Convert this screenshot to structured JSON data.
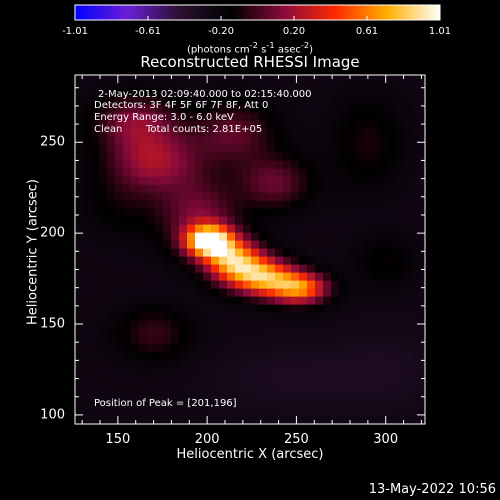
{
  "colorbar": {
    "min": -1.01,
    "max": 1.01,
    "tick_labels": [
      "-1.01",
      "-0.61",
      "-0.20",
      "0.20",
      "0.61",
      "1.01"
    ],
    "units_html": "(photons cm<sup>-2</sup> s<sup>-1</sup> asec<sup>-2</sup>)",
    "colors": [
      "#0000ff",
      "#6b1fd6",
      "#2a1030",
      "#000000",
      "#8a0a3a",
      "#ff2a00",
      "#ffb000",
      "#ffffff"
    ]
  },
  "title": "Reconstructed RHESSI Image",
  "info": {
    "time": "2-May-2013 02:09:40.000 to 02:15:40.000",
    "detectors": "Detectors: 3F 4F 5F 6F 7F 8F, Att 0",
    "energy": "Energy Range: 3.0 - 6.0 keV",
    "algorithm": "Clean",
    "counts": "Total counts: 2.81E+05",
    "peak": "Position of Peak = [201,196]"
  },
  "footer": "13-May-2022 10:56",
  "chart_data": {
    "type": "heatmap",
    "title": "Reconstructed RHESSI Image",
    "xlabel": "Heliocentric X (arcsec)",
    "ylabel": "Heliocentric Y (arcsec)",
    "xlim": [
      126,
      322
    ],
    "ylim": [
      95,
      287
    ],
    "xticks": [
      150,
      200,
      250,
      300
    ],
    "yticks": [
      100,
      150,
      200,
      250
    ],
    "peak": [
      201,
      196
    ],
    "peak_value": 1.01,
    "background_value": -0.25,
    "components": [
      {
        "x": 201,
        "y": 196,
        "sx": 9,
        "sy": 6,
        "amp": 1.25
      },
      {
        "x": 215,
        "y": 185,
        "sx": 11,
        "sy": 8,
        "amp": 0.95
      },
      {
        "x": 232,
        "y": 176,
        "sx": 12,
        "sy": 7,
        "amp": 0.9
      },
      {
        "x": 252,
        "y": 170,
        "sx": 11,
        "sy": 6,
        "amp": 0.85
      },
      {
        "x": 195,
        "y": 210,
        "sx": 16,
        "sy": 14,
        "amp": 0.35
      },
      {
        "x": 170,
        "y": 240,
        "sx": 18,
        "sy": 12,
        "amp": 0.45
      },
      {
        "x": 160,
        "y": 262,
        "sx": 16,
        "sy": 10,
        "amp": 0.35
      },
      {
        "x": 215,
        "y": 255,
        "sx": 16,
        "sy": 12,
        "amp": 0.3
      },
      {
        "x": 238,
        "y": 228,
        "sx": 14,
        "sy": 10,
        "amp": 0.32
      },
      {
        "x": 290,
        "y": 250,
        "sx": 14,
        "sy": 18,
        "amp": 0.15
      },
      {
        "x": 170,
        "y": 145,
        "sx": 14,
        "sy": 10,
        "amp": 0.22
      },
      {
        "x": 300,
        "y": 185,
        "sx": 12,
        "sy": 10,
        "amp": 0.12
      },
      {
        "x": 150,
        "y": 215,
        "sx": 14,
        "sy": 12,
        "amp": 0.1
      },
      {
        "x": 250,
        "y": 120,
        "sx": 30,
        "sy": 12,
        "amp": -0.1
      },
      {
        "x": 300,
        "y": 125,
        "sx": 20,
        "sy": 15,
        "amp": -0.08
      }
    ]
  }
}
